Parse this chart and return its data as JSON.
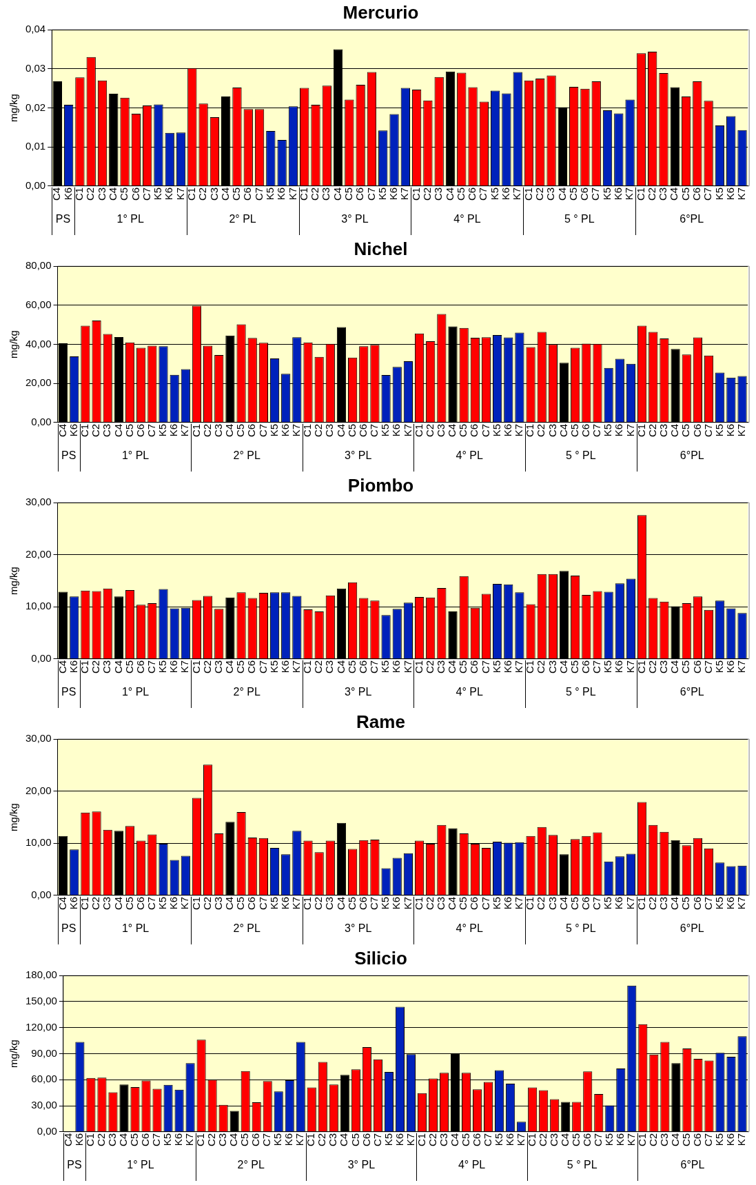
{
  "chart_data": [
    {
      "type": "bar",
      "title": "Mercurio",
      "ylabel": "mg/kg",
      "grid": "y",
      "legend": false,
      "categories": [
        "C4",
        "K6",
        "C1",
        "C2",
        "C3",
        "C4",
        "C5",
        "C6",
        "C7",
        "K5",
        "K6",
        "K7",
        "C1",
        "C2",
        "C3",
        "C4",
        "C5",
        "C6",
        "C7",
        "K5",
        "K6",
        "K7",
        "C1",
        "C2",
        "C3",
        "C4",
        "C5",
        "C6",
        "C7",
        "K5",
        "K6",
        "K7",
        "C1",
        "C2",
        "C3",
        "C4",
        "C5",
        "C6",
        "C7",
        "K5",
        "K6",
        "K7",
        "C1",
        "C2",
        "C3",
        "C4",
        "C5",
        "C6",
        "C7",
        "K5",
        "K6",
        "K7",
        "C1",
        "C2",
        "C3",
        "C4",
        "C5",
        "C6",
        "C7",
        "K5",
        "K6",
        "K7"
      ],
      "values": [
        0.0268,
        0.0208,
        0.0278,
        0.033,
        0.027,
        0.0236,
        0.0226,
        0.0185,
        0.0206,
        0.0209,
        0.0136,
        0.0137,
        0.0302,
        0.0211,
        0.0176,
        0.0229,
        0.0252,
        0.0197,
        0.0197,
        0.0141,
        0.0118,
        0.0204,
        0.0251,
        0.0208,
        0.0257,
        0.035,
        0.0221,
        0.0259,
        0.0292,
        0.0142,
        0.0184,
        0.0251,
        0.0247,
        0.0219,
        0.0279,
        0.0293,
        0.029,
        0.0253,
        0.0216,
        0.0244,
        0.0237,
        0.0292,
        0.027,
        0.0275,
        0.0283,
        0.0202,
        0.0254,
        0.0249,
        0.0268,
        0.0194,
        0.0186,
        0.0221,
        0.034,
        0.0344,
        0.0289,
        0.0253,
        0.0229,
        0.0268,
        0.0218,
        0.0155,
        0.0179,
        0.0143
      ],
      "colors": [
        "#000000",
        "#0022bb",
        "#ff0000",
        "#ff0000",
        "#ff0000",
        "#000000",
        "#ff0000",
        "#ff0000",
        "#ff0000",
        "#0022bb",
        "#0022bb",
        "#0022bb",
        "#ff0000",
        "#ff0000",
        "#ff0000",
        "#000000",
        "#ff0000",
        "#ff0000",
        "#ff0000",
        "#0022bb",
        "#0022bb",
        "#0022bb",
        "#ff0000",
        "#ff0000",
        "#ff0000",
        "#000000",
        "#ff0000",
        "#ff0000",
        "#ff0000",
        "#0022bb",
        "#0022bb",
        "#0022bb",
        "#ff0000",
        "#ff0000",
        "#ff0000",
        "#000000",
        "#ff0000",
        "#ff0000",
        "#ff0000",
        "#0022bb",
        "#0022bb",
        "#0022bb",
        "#ff0000",
        "#ff0000",
        "#ff0000",
        "#000000",
        "#ff0000",
        "#ff0000",
        "#ff0000",
        "#0022bb",
        "#0022bb",
        "#0022bb",
        "#ff0000",
        "#ff0000",
        "#ff0000",
        "#000000",
        "#ff0000",
        "#ff0000",
        "#ff0000",
        "#0022bb",
        "#0022bb",
        "#0022bb"
      ],
      "ylim": [
        0,
        0.04
      ],
      "yticks": [
        {
          "value": 0,
          "label": "0,00"
        },
        {
          "value": 0.01,
          "label": "0,01"
        },
        {
          "value": 0.02,
          "label": "0,02"
        },
        {
          "value": 0.03,
          "label": "0,03"
        },
        {
          "value": 0.04,
          "label": "0,04"
        }
      ],
      "annotations": [
        "PS",
        "1° PL",
        "2° PL",
        "3° PL",
        "4° PL",
        "5 ° PL",
        "6°PL"
      ]
    },
    {
      "type": "bar",
      "title": "Nichel",
      "ylabel": "mg/kg",
      "grid": "y",
      "legend": false,
      "categories": [
        "C4",
        "K6",
        "C1",
        "C2",
        "C3",
        "C4",
        "C5",
        "C6",
        "C7",
        "K5",
        "K6",
        "K7",
        "C1",
        "C2",
        "C3",
        "C4",
        "C5",
        "C6",
        "C7",
        "K5",
        "K6",
        "K7",
        "C1",
        "C2",
        "C3",
        "C4",
        "C5",
        "C6",
        "C7",
        "K5",
        "K6",
        "K7",
        "C1",
        "C2",
        "C3",
        "C4",
        "C5",
        "C6",
        "C7",
        "K5",
        "K6",
        "K7",
        "C1",
        "C2",
        "C3",
        "C4",
        "C5",
        "C6",
        "C7",
        "K5",
        "K6",
        "K7",
        "C1",
        "C2",
        "C3",
        "C4",
        "C5",
        "C6",
        "C7",
        "K5",
        "K6",
        "K7"
      ],
      "values": [
        40.5,
        33.8,
        49.5,
        52.2,
        45.3,
        43.7,
        41.0,
        38.2,
        39.3,
        39.0,
        24.4,
        27.3,
        59.8,
        39.3,
        34.5,
        44.5,
        50.2,
        43.3,
        40.8,
        32.8,
        24.9,
        43.6,
        41.0,
        33.6,
        40.3,
        48.8,
        33.2,
        39.0,
        39.7,
        24.3,
        28.4,
        31.4,
        45.6,
        41.6,
        55.5,
        49.2,
        48.4,
        43.4,
        43.6,
        44.8,
        43.5,
        46.0,
        38.6,
        46.4,
        40.0,
        30.6,
        38.2,
        40.4,
        40.3,
        27.9,
        32.6,
        30.0,
        49.5,
        46.4,
        43.0,
        37.6,
        34.8,
        43.5,
        34.3,
        25.5,
        23.0,
        23.8
      ],
      "colors": [
        "#000000",
        "#0022bb",
        "#ff0000",
        "#ff0000",
        "#ff0000",
        "#000000",
        "#ff0000",
        "#ff0000",
        "#ff0000",
        "#0022bb",
        "#0022bb",
        "#0022bb",
        "#ff0000",
        "#ff0000",
        "#ff0000",
        "#000000",
        "#ff0000",
        "#ff0000",
        "#ff0000",
        "#0022bb",
        "#0022bb",
        "#0022bb",
        "#ff0000",
        "#ff0000",
        "#ff0000",
        "#000000",
        "#ff0000",
        "#ff0000",
        "#ff0000",
        "#0022bb",
        "#0022bb",
        "#0022bb",
        "#ff0000",
        "#ff0000",
        "#ff0000",
        "#000000",
        "#ff0000",
        "#ff0000",
        "#ff0000",
        "#0022bb",
        "#0022bb",
        "#0022bb",
        "#ff0000",
        "#ff0000",
        "#ff0000",
        "#000000",
        "#ff0000",
        "#ff0000",
        "#ff0000",
        "#0022bb",
        "#0022bb",
        "#0022bb",
        "#ff0000",
        "#ff0000",
        "#ff0000",
        "#000000",
        "#ff0000",
        "#ff0000",
        "#ff0000",
        "#0022bb",
        "#0022bb",
        "#0022bb"
      ],
      "ylim": [
        0,
        80
      ],
      "yticks": [
        {
          "value": 0,
          "label": "0,00"
        },
        {
          "value": 20,
          "label": "20,00"
        },
        {
          "value": 40,
          "label": "40,00"
        },
        {
          "value": 60,
          "label": "60,00"
        },
        {
          "value": 80,
          "label": "80,00"
        }
      ],
      "annotations": [
        "PS",
        "1° PL",
        "2° PL",
        "3° PL",
        "4° PL",
        "5 ° PL",
        "6°PL"
      ]
    },
    {
      "type": "bar",
      "title": "Piombo",
      "ylabel": "mg/kg",
      "grid": "y",
      "legend": false,
      "categories": [
        "C4",
        "K6",
        "C1",
        "C2",
        "C3",
        "C4",
        "C5",
        "C6",
        "C7",
        "K5",
        "K6",
        "K7",
        "C1",
        "C2",
        "C3",
        "C4",
        "C5",
        "C6",
        "C7",
        "K5",
        "K6",
        "K7",
        "C1",
        "C2",
        "C3",
        "C4",
        "C5",
        "C6",
        "C7",
        "K5",
        "K6",
        "K7",
        "C1",
        "C2",
        "C3",
        "C4",
        "C5",
        "C6",
        "C7",
        "K5",
        "K6",
        "K7",
        "C1",
        "C2",
        "C3",
        "C4",
        "C5",
        "C6",
        "C7",
        "K5",
        "K6",
        "K7",
        "C1",
        "C2",
        "C3",
        "C4",
        "C5",
        "C6",
        "C7",
        "K5",
        "K6",
        "K7"
      ],
      "values": [
        12.9,
        12.0,
        13.1,
        13.0,
        13.5,
        12.0,
        13.2,
        10.4,
        10.7,
        13.4,
        9.7,
        9.8,
        11.3,
        12.1,
        9.6,
        11.8,
        12.8,
        11.7,
        12.7,
        12.8,
        12.8,
        12.1,
        9.5,
        9.1,
        12.2,
        13.5,
        14.7,
        11.7,
        11.2,
        8.4,
        9.6,
        10.8,
        11.9,
        11.8,
        13.6,
        9.1,
        15.9,
        9.8,
        12.5,
        14.4,
        14.3,
        12.8,
        10.5,
        16.3,
        16.3,
        16.9,
        16.0,
        12.3,
        13.0,
        12.9,
        14.5,
        15.4,
        27.6,
        11.7,
        11.0,
        10.1,
        10.7,
        12.0,
        9.4,
        11.2,
        9.7,
        8.8
      ],
      "colors": [
        "#000000",
        "#0022bb",
        "#ff0000",
        "#ff0000",
        "#ff0000",
        "#000000",
        "#ff0000",
        "#ff0000",
        "#ff0000",
        "#0022bb",
        "#0022bb",
        "#0022bb",
        "#ff0000",
        "#ff0000",
        "#ff0000",
        "#000000",
        "#ff0000",
        "#ff0000",
        "#ff0000",
        "#0022bb",
        "#0022bb",
        "#0022bb",
        "#ff0000",
        "#ff0000",
        "#ff0000",
        "#000000",
        "#ff0000",
        "#ff0000",
        "#ff0000",
        "#0022bb",
        "#0022bb",
        "#0022bb",
        "#ff0000",
        "#ff0000",
        "#ff0000",
        "#000000",
        "#ff0000",
        "#ff0000",
        "#ff0000",
        "#0022bb",
        "#0022bb",
        "#0022bb",
        "#ff0000",
        "#ff0000",
        "#ff0000",
        "#000000",
        "#ff0000",
        "#ff0000",
        "#ff0000",
        "#0022bb",
        "#0022bb",
        "#0022bb",
        "#ff0000",
        "#ff0000",
        "#ff0000",
        "#000000",
        "#ff0000",
        "#ff0000",
        "#ff0000",
        "#0022bb",
        "#0022bb",
        "#0022bb"
      ],
      "ylim": [
        0,
        30
      ],
      "yticks": [
        {
          "value": 0,
          "label": "0,00"
        },
        {
          "value": 10,
          "label": "10,00"
        },
        {
          "value": 20,
          "label": "20,00"
        },
        {
          "value": 30,
          "label": "30,00"
        }
      ],
      "annotations": [
        "PS",
        "1° PL",
        "2° PL",
        "3° PL",
        "4° PL",
        "5 ° PL",
        "6°PL"
      ]
    },
    {
      "type": "bar",
      "title": "Rame",
      "ylabel": "mg/kg",
      "grid": "y",
      "legend": false,
      "categories": [
        "C4",
        "K6",
        "C1",
        "C2",
        "C3",
        "C4",
        "C5",
        "C6",
        "C7",
        "K5",
        "K6",
        "K7",
        "C1",
        "C2",
        "C3",
        "C4",
        "C5",
        "C6",
        "C7",
        "K5",
        "K6",
        "K7",
        "C1",
        "C2",
        "C3",
        "C4",
        "C5",
        "C6",
        "C7",
        "K5",
        "K6",
        "K7",
        "C1",
        "C2",
        "C3",
        "C4",
        "C5",
        "C6",
        "C7",
        "K5",
        "K6",
        "K7",
        "C1",
        "C2",
        "C3",
        "C4",
        "C5",
        "C6",
        "C7",
        "K5",
        "K6",
        "K7",
        "C1",
        "C2",
        "C3",
        "C4",
        "C5",
        "C6",
        "C7",
        "K5",
        "K6",
        "K7"
      ],
      "values": [
        11.4,
        8.8,
        15.9,
        16.1,
        12.6,
        12.4,
        13.3,
        10.5,
        11.7,
        9.9,
        6.8,
        7.6,
        18.7,
        25.1,
        11.9,
        14.1,
        16.0,
        11.1,
        11.0,
        9.1,
        7.9,
        12.4,
        10.5,
        8.3,
        10.5,
        13.9,
        8.9,
        10.6,
        10.7,
        5.2,
        7.2,
        8.1,
        10.5,
        9.9,
        13.5,
        12.9,
        11.9,
        9.9,
        9.1,
        10.3,
        10.1,
        10.2,
        11.4,
        13.1,
        11.6,
        7.9,
        10.8,
        11.4,
        12.1,
        6.5,
        7.5,
        8.0,
        17.9,
        13.5,
        12.2,
        10.6,
        9.6,
        11.0,
        9.0,
        6.3,
        5.6,
        5.7
      ],
      "colors": [
        "#000000",
        "#0022bb",
        "#ff0000",
        "#ff0000",
        "#ff0000",
        "#000000",
        "#ff0000",
        "#ff0000",
        "#ff0000",
        "#0022bb",
        "#0022bb",
        "#0022bb",
        "#ff0000",
        "#ff0000",
        "#ff0000",
        "#000000",
        "#ff0000",
        "#ff0000",
        "#ff0000",
        "#0022bb",
        "#0022bb",
        "#0022bb",
        "#ff0000",
        "#ff0000",
        "#ff0000",
        "#000000",
        "#ff0000",
        "#ff0000",
        "#ff0000",
        "#0022bb",
        "#0022bb",
        "#0022bb",
        "#ff0000",
        "#ff0000",
        "#ff0000",
        "#000000",
        "#ff0000",
        "#ff0000",
        "#ff0000",
        "#0022bb",
        "#0022bb",
        "#0022bb",
        "#ff0000",
        "#ff0000",
        "#ff0000",
        "#000000",
        "#ff0000",
        "#ff0000",
        "#ff0000",
        "#0022bb",
        "#0022bb",
        "#0022bb",
        "#ff0000",
        "#ff0000",
        "#ff0000",
        "#000000",
        "#ff0000",
        "#ff0000",
        "#ff0000",
        "#0022bb",
        "#0022bb",
        "#0022bb"
      ],
      "ylim": [
        0,
        30
      ],
      "yticks": [
        {
          "value": 0,
          "label": "0,00"
        },
        {
          "value": 10,
          "label": "10,00"
        },
        {
          "value": 20,
          "label": "20,00"
        },
        {
          "value": 30,
          "label": "30,00"
        }
      ],
      "annotations": [
        "PS",
        "1° PL",
        "2° PL",
        "3° PL",
        "4° PL",
        "5 ° PL",
        "6°PL"
      ]
    },
    {
      "type": "bar",
      "title": "Silicio",
      "ylabel": "mg/kg",
      "grid": "y",
      "legend": false,
      "categories": [
        "C4",
        "K6",
        "C1",
        "C2",
        "C3",
        "C4",
        "C5",
        "C6",
        "C7",
        "K5",
        "K6",
        "K7",
        "C1",
        "C2",
        "C3",
        "C4",
        "C5",
        "C6",
        "C7",
        "K5",
        "K6",
        "K7",
        "C1",
        "C2",
        "C3",
        "C4",
        "C5",
        "C6",
        "C7",
        "K5",
        "K6",
        "K7",
        "C1",
        "C2",
        "C3",
        "C4",
        "C5",
        "C6",
        "C7",
        "K5",
        "K6",
        "K7",
        "C1",
        "C2",
        "C3",
        "C4",
        "C5",
        "C6",
        "C7",
        "K5",
        "K6",
        "K7",
        "C1",
        "C2",
        "C3",
        "C4",
        "C5",
        "C6",
        "C7",
        "K5",
        "K6",
        "K7"
      ],
      "values": [
        null,
        103.5,
        62,
        62.5,
        45.5,
        54.5,
        51.5,
        59,
        49.5,
        54,
        48.5,
        79,
        106,
        60,
        31,
        24,
        70,
        34,
        58.5,
        46.5,
        59.5,
        103.5,
        51,
        80.5,
        54.5,
        65.5,
        72,
        97.5,
        83.5,
        69,
        144,
        89.5,
        44.5,
        61.5,
        68,
        90.5,
        68,
        49,
        57.5,
        71,
        55.5,
        11.5,
        51,
        48,
        37.5,
        34.5,
        34.5,
        69.5,
        43.5,
        30.5,
        73,
        168.5,
        124,
        89,
        103.5,
        79,
        96,
        84,
        82,
        91,
        86.5,
        110
      ],
      "colors": [
        "#000000",
        "#0022bb",
        "#ff0000",
        "#ff0000",
        "#ff0000",
        "#000000",
        "#ff0000",
        "#ff0000",
        "#ff0000",
        "#0022bb",
        "#0022bb",
        "#0022bb",
        "#ff0000",
        "#ff0000",
        "#ff0000",
        "#000000",
        "#ff0000",
        "#ff0000",
        "#ff0000",
        "#0022bb",
        "#0022bb",
        "#0022bb",
        "#ff0000",
        "#ff0000",
        "#ff0000",
        "#000000",
        "#ff0000",
        "#ff0000",
        "#ff0000",
        "#0022bb",
        "#0022bb",
        "#0022bb",
        "#ff0000",
        "#ff0000",
        "#ff0000",
        "#000000",
        "#ff0000",
        "#ff0000",
        "#ff0000",
        "#0022bb",
        "#0022bb",
        "#0022bb",
        "#ff0000",
        "#ff0000",
        "#ff0000",
        "#000000",
        "#ff0000",
        "#ff0000",
        "#ff0000",
        "#0022bb",
        "#0022bb",
        "#0022bb",
        "#ff0000",
        "#ff0000",
        "#ff0000",
        "#000000",
        "#ff0000",
        "#ff0000",
        "#ff0000",
        "#0022bb",
        "#0022bb",
        "#0022bb"
      ],
      "ylim": [
        0,
        180
      ],
      "yticks": [
        {
          "value": 0,
          "label": "0,00"
        },
        {
          "value": 30,
          "label": "30,00"
        },
        {
          "value": 60,
          "label": "60,00"
        },
        {
          "value": 90,
          "label": "90,00"
        },
        {
          "value": 120,
          "label": "120,00"
        },
        {
          "value": 150,
          "label": "150,00"
        },
        {
          "value": 180,
          "label": "180,00"
        }
      ],
      "annotations": [
        "PS",
        "1° PL",
        "2° PL",
        "3° PL",
        "4° PL",
        "5 ° PL",
        "6°PL"
      ]
    }
  ]
}
